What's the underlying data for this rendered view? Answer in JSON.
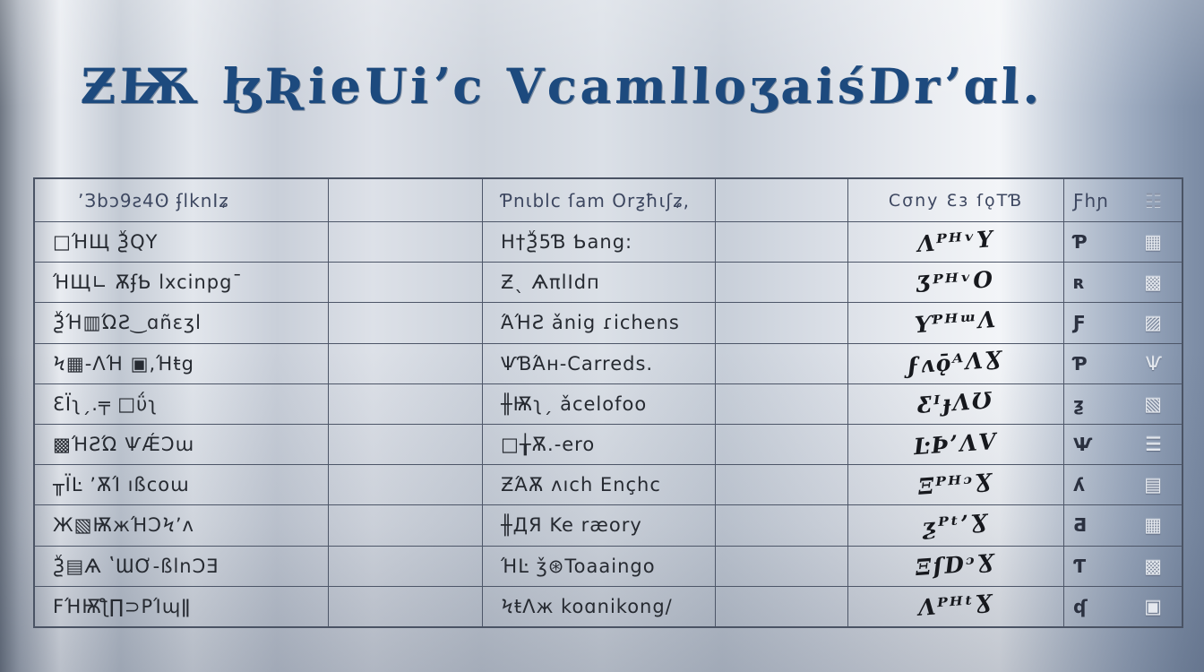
{
  "title": "ƵѬ ɮƦieUiʼc VcamlloʒaiśDrʼɑl.",
  "colors": {
    "title": "#1d4a7e",
    "table_line": "#4a5364",
    "row_text": "#262a31",
    "header_text": "#3d4760",
    "handwriting_ink": "#16181d",
    "emboss": "#e4e8ee",
    "background_metal_light": "#e9ecf1",
    "background_metal_dark": "#7b8ba4"
  },
  "table": {
    "headers": {
      "col1": "ʼЗbɔ9ƨ4ʘ ʄlknIʑ",
      "col2": "Ƥnιblc ſam Orƺħιʃʑ,",
      "col3": "Cσny Ɛз ſǫTƁ",
      "col4": "Ƒhɲ",
      "col5": "☷"
    },
    "rows": [
      {
        "col1": "□ΉЩ ѮQΥ",
        "col2": "H†Ѯ5Ɓ Ƅang:",
        "col3": "ΛᴾᴴᵛY",
        "col4": "Ƥ",
        "col5": "▦"
      },
      {
        "col1": "ΉЩ∟ ѪʄƄ lxcinpg¯",
        "col2": "Ƶˎ ѦπlIdп",
        "col3": "ƷᴾᴴᵛO",
        "col4": "ʀ",
        "col5": "▩"
      },
      {
        "col1": "ѮΉ▥ΏƧ‿ɑñɛʒl",
        "col2": "ΆΉƧ ǎnig ɾichens",
        "col3": "ƳᴾᴴᵚΛ",
        "col4": "Ƒ",
        "col5": "▨"
      },
      {
        "col1": "Ϟ▦-ɅΉ ▣,Ήŧg",
        "col2": "ѰƁΆʜ-Carreds.",
        "col3": "ϝʌǭᴬΛƔ",
        "col4": "Ƥ",
        "col5": "Ѱ"
      },
      {
        "col1": "ƐΪʅˏ.╤ □ΰʅ",
        "col2": "╫Ѭʅˏ ǎcelofoo",
        "col3": "ƸᴵɟΛƱ",
        "col4": "ƺ",
        "col5": "▧"
      },
      {
        "col1": "▩ΉƧΏ ѰǼƆɯ",
        "col2": "□╁Ѫ.-ero",
        "col3": "ĿϷʼΛV",
        "col4": "Ѱ",
        "col5": "☰"
      },
      {
        "col1": "╥ΪĿ ʼѪΊ ıßcoɯ",
        "col2": "ƵΆѪ ʌıch Ençhc",
        "col3": "ΞᴾᴴᵓƔ",
        "col4": "ʎ",
        "col5": "▤"
      },
      {
        "col1": "Ж▧ѬжΉƆϞʼʌ",
        "col2": "╫ДЯ Ke ræory",
        "col3": "ƺᴾᵗʼƔ",
        "col4": "Ƌ",
        "col5": "▦"
      },
      {
        "col1": "Ѯ▤Ѧ ʽƜƠ-ßlnƆƎ",
        "col2": "ΉĿ ǯ⊛Toaaingo",
        "col3": "ΞſDᵓƔ",
        "col4": "Ƭ",
        "col5": "▩"
      },
      {
        "col1": "FΉѬƪ∏⊃PΊɰǁ",
        "col2": "ϞŧΛж koɑnikong/",
        "col3": "ΛᴾᴴᵗƔ",
        "col4": "ʠ",
        "col5": "▣"
      }
    ]
  }
}
